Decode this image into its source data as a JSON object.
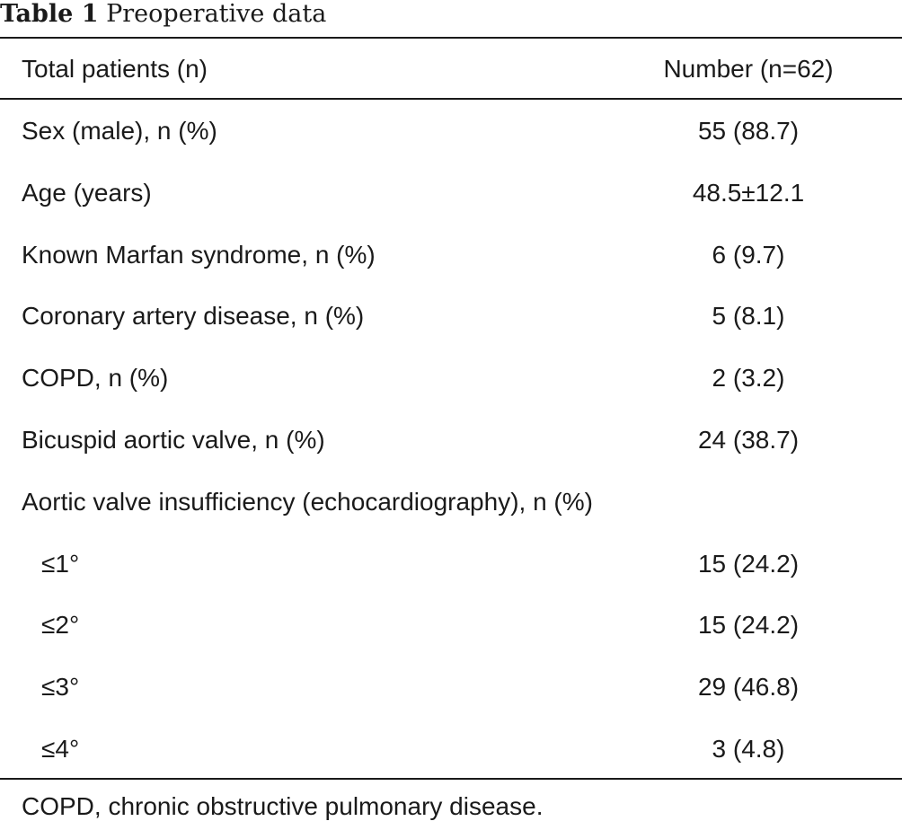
{
  "caption": {
    "label": "Table 1",
    "title": "Preoperative data"
  },
  "header": {
    "col1": "Total patients (n)",
    "col2": "Number (n=62)"
  },
  "rows": [
    {
      "label": "Sex (male), n (%)",
      "value": "55 (88.7)"
    },
    {
      "label": "Age (years)",
      "value": "48.5±12.1"
    },
    {
      "label": "Known Marfan syndrome, n (%)",
      "value": "6 (9.7)"
    },
    {
      "label": "Coronary artery disease, n (%)",
      "value": "5 (8.1)"
    },
    {
      "label": "COPD, n (%)",
      "value": "2 (3.2)"
    },
    {
      "label": "Bicuspid aortic valve, n (%)",
      "value": "24 (38.7)"
    },
    {
      "label": "Aortic valve insufficiency (echocardiography), n (%)",
      "value": ""
    },
    {
      "label": "≤1°",
      "value": "15 (24.2)"
    },
    {
      "label": "≤2°",
      "value": "15 (24.2)"
    },
    {
      "label": "≤3°",
      "value": "29 (46.8)"
    },
    {
      "label": "≤4°",
      "value": "3 (4.8)"
    }
  ],
  "footnote": "COPD, chronic obstructive pulmonary disease."
}
